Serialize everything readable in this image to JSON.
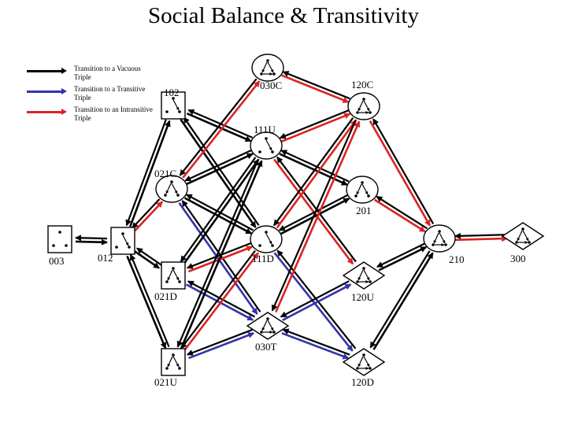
{
  "title": "Social Balance & Transitivity",
  "legend": [
    {
      "label": "Transition to a Vacuous Triple",
      "color": "#000000"
    },
    {
      "label": "Transition to a Transitive Triple",
      "color": "#3333aa"
    },
    {
      "label": "Transition to an Intransitive Triple",
      "color": "#dd2222"
    }
  ],
  "nodes": [
    {
      "id": "003",
      "label": "003",
      "shape": "square"
    },
    {
      "id": "012",
      "label": "012",
      "shape": "square"
    },
    {
      "id": "102",
      "label": "102",
      "shape": "square"
    },
    {
      "id": "021D",
      "label": "021D",
      "shape": "square"
    },
    {
      "id": "021U",
      "label": "021U",
      "shape": "square"
    },
    {
      "id": "021C",
      "label": "021C",
      "shape": "circle"
    },
    {
      "id": "111D",
      "label": "111D",
      "shape": "circle"
    },
    {
      "id": "111U",
      "label": "111U",
      "shape": "circle"
    },
    {
      "id": "030T",
      "label": "030T",
      "shape": "diamond"
    },
    {
      "id": "030C",
      "label": "030C",
      "shape": "circle"
    },
    {
      "id": "201",
      "label": "201",
      "shape": "circle"
    },
    {
      "id": "120U",
      "label": "120U",
      "shape": "diamond"
    },
    {
      "id": "120D",
      "label": "120D",
      "shape": "diamond"
    },
    {
      "id": "120C",
      "label": "120C",
      "shape": "circle"
    },
    {
      "id": "210",
      "label": "210",
      "shape": "circle"
    },
    {
      "id": "300",
      "label": "300",
      "shape": "diamond"
    }
  ],
  "edges": [
    {
      "from": "003",
      "to": "012",
      "type": "vacuous"
    },
    {
      "from": "012",
      "to": "102",
      "type": "vacuous"
    },
    {
      "from": "012",
      "to": "021C",
      "type": "intransitive"
    },
    {
      "from": "012",
      "to": "021D",
      "type": "vacuous"
    },
    {
      "from": "012",
      "to": "021U",
      "type": "vacuous"
    },
    {
      "from": "102",
      "to": "111U",
      "type": "vacuous"
    },
    {
      "from": "102",
      "to": "111D",
      "type": "vacuous"
    },
    {
      "from": "021C",
      "to": "111D",
      "type": "vacuous"
    },
    {
      "from": "021C",
      "to": "111U",
      "type": "vacuous"
    },
    {
      "from": "021C",
      "to": "030T",
      "type": "transitive"
    },
    {
      "from": "021C",
      "to": "030C",
      "type": "intransitive"
    },
    {
      "from": "021D",
      "to": "111D",
      "type": "intransitive"
    },
    {
      "from": "021D",
      "to": "111U",
      "type": "vacuous"
    },
    {
      "from": "021D",
      "to": "030T",
      "type": "transitive"
    },
    {
      "from": "021U",
      "to": "111U",
      "type": "vacuous"
    },
    {
      "from": "021U",
      "to": "111D",
      "type": "intransitive"
    },
    {
      "from": "021U",
      "to": "030T",
      "type": "transitive"
    },
    {
      "from": "111U",
      "to": "201",
      "type": "vacuous"
    },
    {
      "from": "111U",
      "to": "120C",
      "type": "intransitive"
    },
    {
      "from": "111U",
      "to": "120U",
      "type": "intransitive"
    },
    {
      "from": "111D",
      "to": "201",
      "type": "vacuous"
    },
    {
      "from": "111D",
      "to": "120C",
      "type": "intransitive"
    },
    {
      "from": "111D",
      "to": "120D",
      "type": "transitive"
    },
    {
      "from": "030C",
      "to": "120C",
      "type": "intransitive"
    },
    {
      "from": "030T",
      "to": "120D",
      "type": "transitive"
    },
    {
      "from": "030T",
      "to": "120U",
      "type": "transitive"
    },
    {
      "from": "030T",
      "to": "120C",
      "type": "intransitive"
    },
    {
      "from": "201",
      "to": "210",
      "type": "intransitive"
    },
    {
      "from": "120C",
      "to": "210",
      "type": "intransitive"
    },
    {
      "from": "120U",
      "to": "210",
      "type": "vacuous"
    },
    {
      "from": "120D",
      "to": "210",
      "type": "vacuous"
    },
    {
      "from": "210",
      "to": "300",
      "type": "intransitive"
    }
  ],
  "edge_colors": {
    "vacuous": "#000000",
    "transitive": "#3333aa",
    "intransitive": "#dd2222"
  }
}
